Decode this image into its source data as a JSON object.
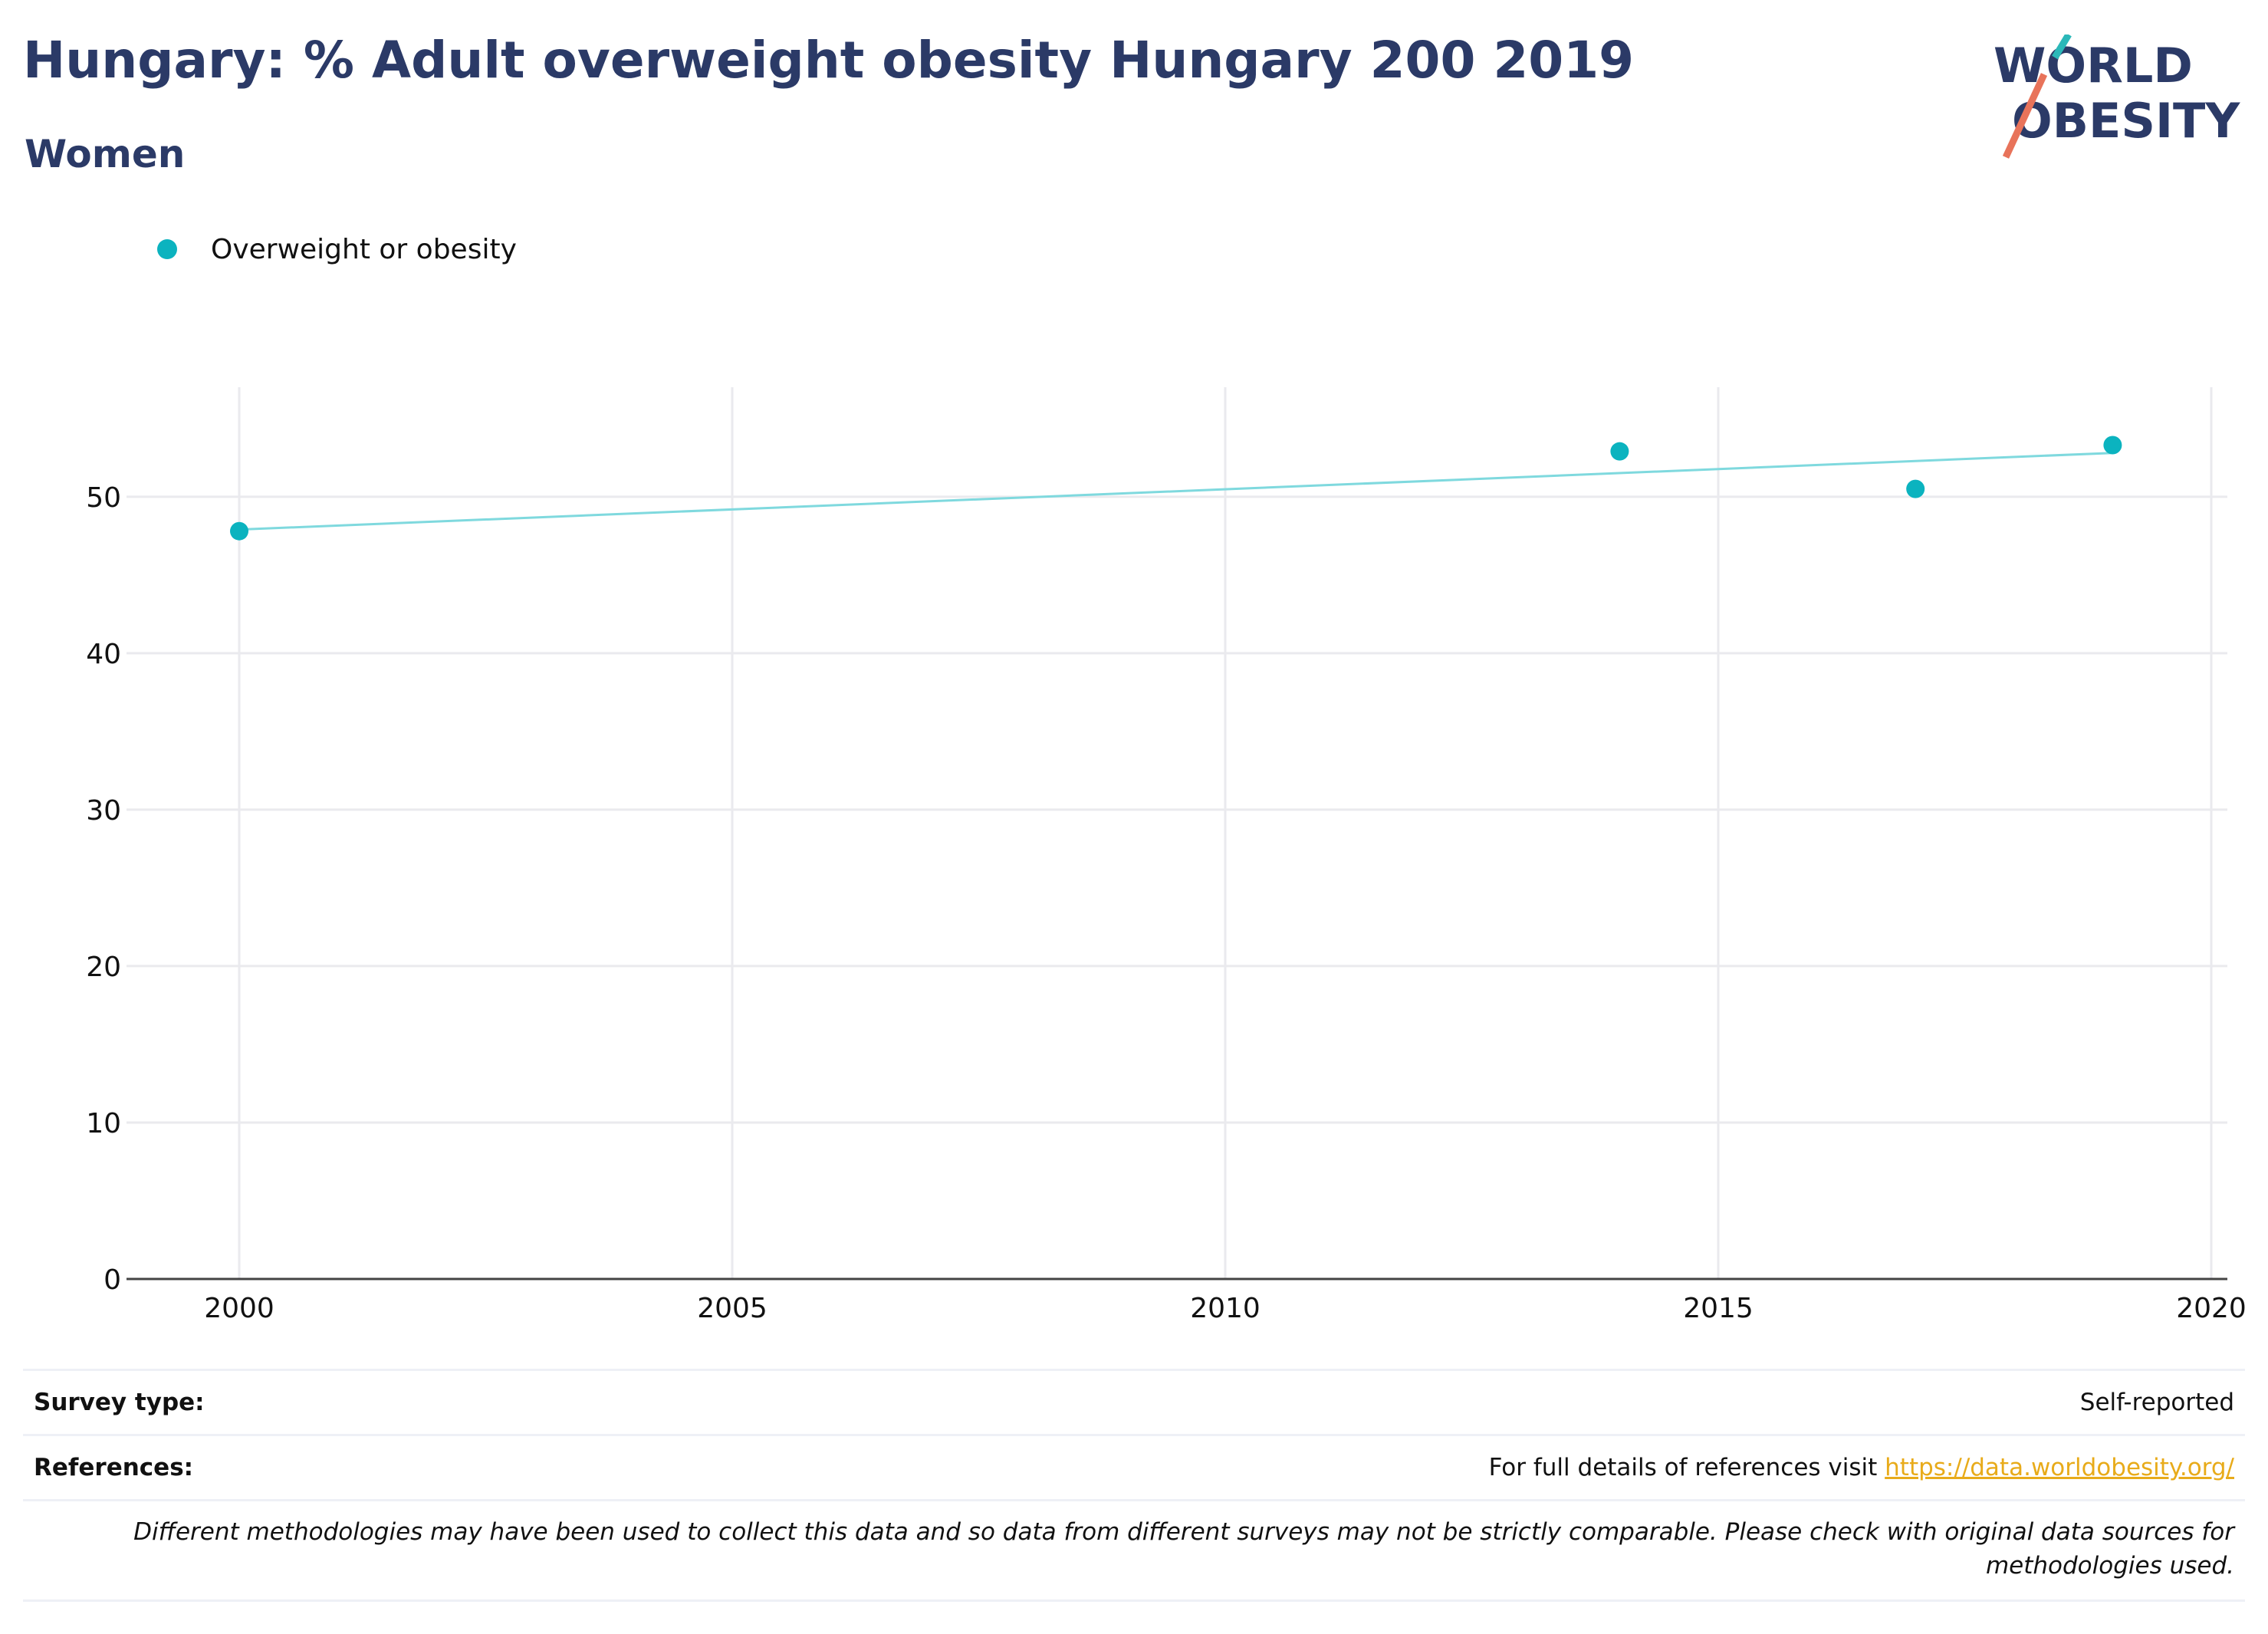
{
  "header": {
    "title": "Hungary: % Adult overweight obesity Hungary 200 2019",
    "subtitle": "Women",
    "logo_line1": "WORLD",
    "logo_line2": "OBESITY"
  },
  "colors": {
    "title": "#2b3a67",
    "series": "#0bb3bf",
    "trend": "#7fd9de",
    "grid": "#eaeaee",
    "link": "#e8ab1a",
    "logo_slash_red": "#e8735a",
    "logo_slash_teal": "#2bb8b9"
  },
  "chart_data": {
    "type": "scatter",
    "title": "Hungary: % Adult overweight obesity Hungary 200 2019",
    "subtitle": "Women",
    "xlabel": "",
    "ylabel": "",
    "xlim": [
      1999,
      2020.2
    ],
    "ylim": [
      0,
      57
    ],
    "x_ticks": [
      2000,
      2005,
      2010,
      2015,
      2020
    ],
    "y_ticks": [
      0,
      10,
      20,
      30,
      40,
      50
    ],
    "grid": true,
    "legend_position": "top-left",
    "series": [
      {
        "name": "Overweight or obesity",
        "x": [
          2000,
          2014,
          2017,
          2019
        ],
        "y": [
          47.8,
          52.9,
          50.5,
          53.3
        ]
      }
    ],
    "trendline": {
      "x": [
        2000,
        2019
      ],
      "y": [
        47.9,
        52.8
      ]
    }
  },
  "footer": {
    "survey_label": "Survey type:",
    "survey_value": "Self-reported",
    "references_label": "References:",
    "references_text": "For full details of references visit",
    "references_link": "https://data.worldobesity.org/",
    "note": "Different methodologies may have been used to collect this data and so data from different surveys may not be strictly comparable. Please check with original data sources for methodologies used."
  }
}
